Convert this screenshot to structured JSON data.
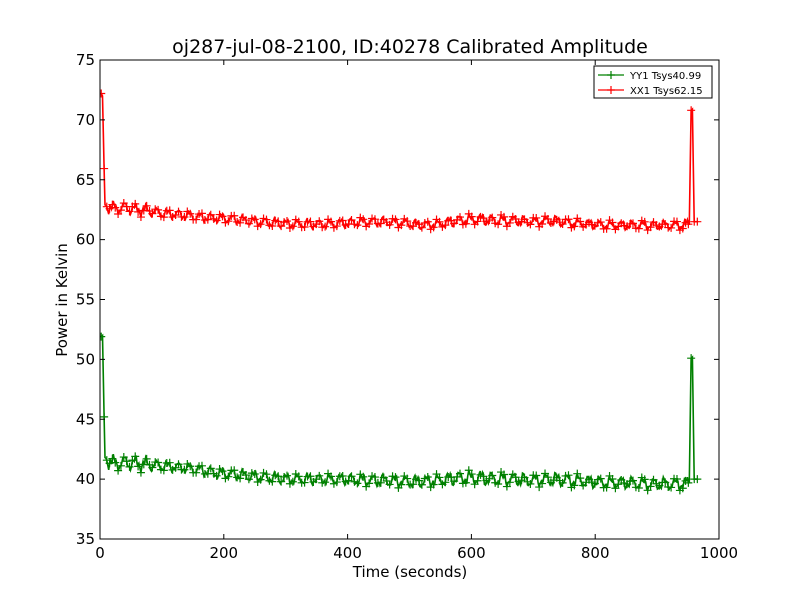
{
  "chart_data": {
    "type": "line",
    "title": "oj287-jul-08-2100, ID:40278 Calibrated Amplitude",
    "xlabel": "Time (seconds)",
    "ylabel": "Power in Kelvin",
    "xlim": [
      0,
      1000
    ],
    "ylim": [
      35,
      75
    ],
    "xticks": [
      0,
      200,
      400,
      600,
      800,
      1000
    ],
    "yticks": [
      35,
      40,
      45,
      50,
      55,
      60,
      65,
      70,
      75
    ],
    "grid": false,
    "legend_position": "top-right",
    "series": [
      {
        "name": "YY1 Tsys40.99",
        "color": "#008000",
        "x": [
          2,
          4,
          8,
          20,
          40,
          60,
          80,
          100,
          130,
          160,
          190,
          220,
          250,
          280,
          310,
          340,
          370,
          400,
          430,
          460,
          490,
          520,
          550,
          580,
          610,
          640,
          670,
          700,
          730,
          760,
          790,
          820,
          850,
          880,
          910,
          940,
          952,
          955,
          957,
          960,
          965
        ],
        "y": [
          51.9,
          52.0,
          41.8,
          41.3,
          41.4,
          41.3,
          41.2,
          41.1,
          41.0,
          40.8,
          40.5,
          40.4,
          40.2,
          40.1,
          40.0,
          40.0,
          40.0,
          40.0,
          39.9,
          39.9,
          39.8,
          39.8,
          39.9,
          40.1,
          40.1,
          40.0,
          40.0,
          39.9,
          40.0,
          39.9,
          39.8,
          39.7,
          39.7,
          39.6,
          39.6,
          39.6,
          39.7,
          50.1,
          50.2,
          40.0,
          40.0
        ],
        "amp": [
          0.3,
          0.3,
          0.5,
          0.5,
          0.5,
          0.45,
          0.4,
          0.35,
          0.3,
          0.35,
          0.35,
          0.35,
          0.35,
          0.35,
          0.35,
          0.35,
          0.35,
          0.35,
          0.4,
          0.4,
          0.4,
          0.4,
          0.4,
          0.45,
          0.45,
          0.45,
          0.45,
          0.4,
          0.45,
          0.45,
          0.4,
          0.4,
          0.4,
          0.4,
          0.4,
          0.4,
          0.35,
          0.3,
          0.3,
          0.3,
          0.3
        ]
      },
      {
        "name": "XX1 Tsys62.15",
        "color": "#ff0000",
        "x": [
          2,
          4,
          8,
          20,
          40,
          60,
          80,
          100,
          130,
          160,
          190,
          220,
          250,
          280,
          310,
          340,
          370,
          400,
          430,
          460,
          490,
          520,
          550,
          580,
          610,
          640,
          670,
          700,
          730,
          760,
          790,
          820,
          850,
          880,
          910,
          940,
          952,
          955,
          957,
          960,
          965
        ],
        "y": [
          72.2,
          72.0,
          62.9,
          62.6,
          62.7,
          62.5,
          62.4,
          62.2,
          62.1,
          61.9,
          61.8,
          61.7,
          61.5,
          61.4,
          61.3,
          61.3,
          61.3,
          61.4,
          61.5,
          61.5,
          61.4,
          61.2,
          61.3,
          61.6,
          61.7,
          61.6,
          61.6,
          61.5,
          61.6,
          61.4,
          61.3,
          61.2,
          61.2,
          61.2,
          61.2,
          61.2,
          61.3,
          70.8,
          70.9,
          61.5,
          61.5
        ],
        "amp": [
          0.3,
          0.3,
          0.4,
          0.4,
          0.4,
          0.35,
          0.35,
          0.3,
          0.3,
          0.3,
          0.3,
          0.3,
          0.3,
          0.3,
          0.3,
          0.3,
          0.3,
          0.3,
          0.3,
          0.3,
          0.3,
          0.3,
          0.3,
          0.35,
          0.35,
          0.35,
          0.35,
          0.3,
          0.35,
          0.3,
          0.3,
          0.3,
          0.3,
          0.3,
          0.3,
          0.3,
          0.3,
          0.3,
          0.3,
          0.3,
          0.3
        ]
      }
    ]
  }
}
